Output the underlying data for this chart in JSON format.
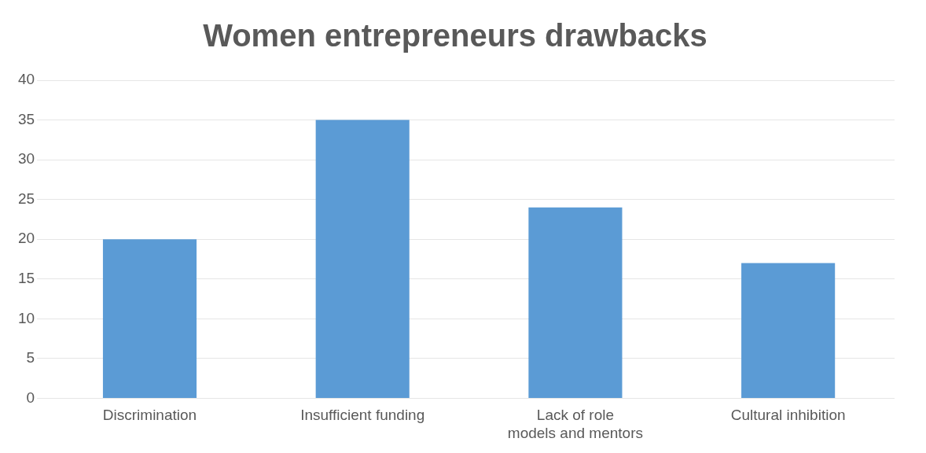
{
  "chart_data": {
    "type": "bar",
    "title": "Women entrepreneurs drawbacks",
    "categories": [
      "Discrimination",
      "Insufficient funding",
      "Lack of role models and mentors",
      "Cultural inhibition"
    ],
    "values": [
      20,
      35,
      24,
      17
    ],
    "color": "#5b9bd5",
    "ylim": [
      0,
      40
    ],
    "yticks": [
      0,
      5,
      10,
      15,
      20,
      25,
      30,
      35,
      40
    ],
    "grid": "y",
    "legend": false
  }
}
